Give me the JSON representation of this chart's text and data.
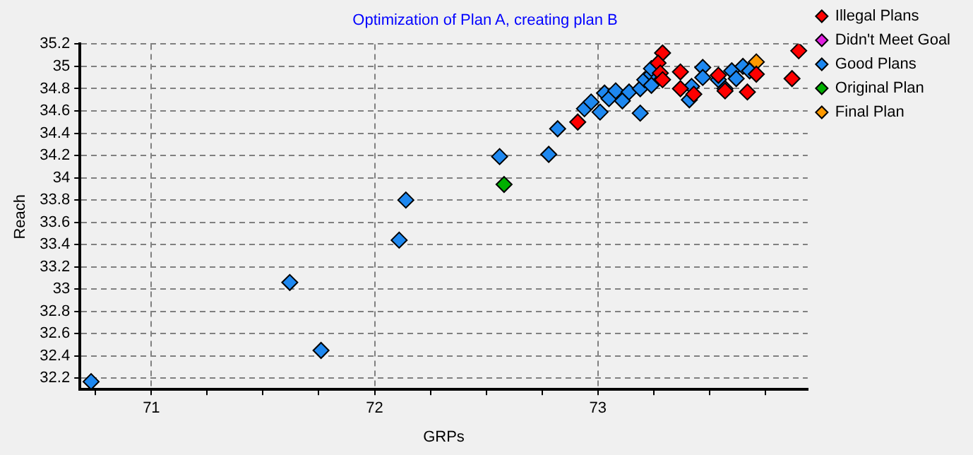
{
  "chart_data": {
    "type": "scatter",
    "title": "Optimization of Plan A, creating plan B",
    "xlabel": "GRPs",
    "ylabel": "Reach",
    "xlim": [
      70.68,
      73.94
    ],
    "ylim": [
      32.1,
      35.2
    ],
    "xticks": [
      {
        "value": 70.75,
        "label": null
      },
      71,
      {
        "value": 71.25,
        "label": null
      },
      {
        "value": 71.5,
        "label": null
      },
      {
        "value": 71.75,
        "label": null
      },
      72,
      {
        "value": 72.25,
        "label": null
      },
      {
        "value": 72.5,
        "label": null
      },
      {
        "value": 72.75,
        "label": null
      },
      73,
      {
        "value": 73.25,
        "label": null
      },
      {
        "value": 73.5,
        "label": null
      },
      {
        "value": 73.75,
        "label": null
      }
    ],
    "yticks": [
      32.2,
      32.4,
      32.6,
      32.8,
      33,
      33.2,
      33.4,
      33.6,
      33.8,
      34,
      34.2,
      34.4,
      34.6,
      34.8,
      35,
      35.2
    ],
    "grid": true,
    "legend": "top right",
    "marker": "diamond",
    "series": [
      {
        "name": "Illegal Plans",
        "color": "#ff0000",
        "x": [
          72.91,
          73.29,
          73.27,
          73.28,
          73.29,
          73.37,
          73.37,
          73.43,
          73.54,
          73.57,
          73.67,
          73.71,
          73.87,
          73.9
        ],
        "values": [
          34.5,
          35.12,
          35.03,
          34.94,
          34.88,
          34.95,
          34.8,
          34.75,
          34.92,
          34.78,
          34.77,
          34.93,
          34.89,
          35.14
        ]
      },
      {
        "name": "Didn't Meet Goal",
        "color": "#e020e0"
      },
      {
        "name": "Good Plans",
        "color": "#1e88f0",
        "x": [
          70.73,
          71.62,
          71.76,
          72.11,
          72.14,
          72.56,
          72.78,
          72.82,
          72.94,
          72.97,
          73.01,
          73.03,
          73.05,
          73.08,
          73.11,
          73.14,
          73.19,
          73.19,
          73.21,
          73.24,
          73.24,
          73.24,
          73.41,
          73.42,
          73.47,
          73.47,
          73.54,
          73.57,
          73.6,
          73.62,
          73.65,
          73.68
        ],
        "values": [
          32.17,
          33.06,
          32.45,
          33.44,
          33.8,
          34.19,
          34.21,
          34.44,
          34.62,
          34.68,
          34.59,
          34.76,
          34.71,
          34.78,
          34.69,
          34.77,
          34.58,
          34.8,
          34.88,
          34.93,
          34.98,
          34.83,
          34.7,
          34.82,
          34.99,
          34.9,
          34.88,
          34.8,
          34.96,
          34.89,
          35,
          34.96
        ]
      },
      {
        "name": "Original Plan",
        "color": "#00b000",
        "x": [
          72.58
        ],
        "values": [
          33.94
        ]
      },
      {
        "name": "Final Plan",
        "color": "#ff9900",
        "x": [
          73.71
        ],
        "values": [
          35.04
        ]
      }
    ]
  }
}
